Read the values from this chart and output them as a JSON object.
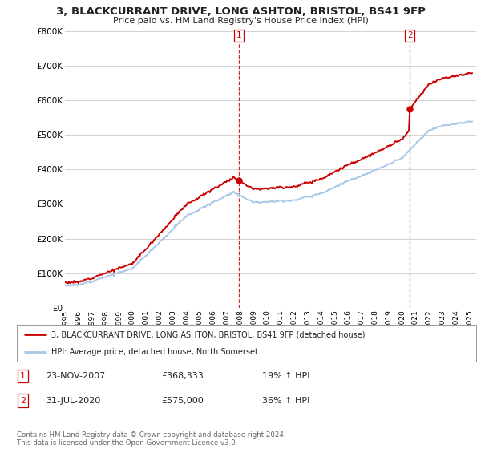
{
  "title": "3, BLACKCURRANT DRIVE, LONG ASHTON, BRISTOL, BS41 9FP",
  "subtitle": "Price paid vs. HM Land Registry's House Price Index (HPI)",
  "ylabel_ticks": [
    "£0",
    "£100K",
    "£200K",
    "£300K",
    "£400K",
    "£500K",
    "£600K",
    "£700K",
    "£800K"
  ],
  "ylim": [
    0,
    800000
  ],
  "xlim_start": 1995.0,
  "xlim_end": 2025.5,
  "hpi_color": "#a8c8e8",
  "price_color": "#cc0000",
  "marker1_date": 2007.9,
  "marker1_price": 368333,
  "marker2_date": 2020.58,
  "marker2_price": 575000,
  "vline_color": "#cc0000",
  "legend_label1": "3, BLACKCURRANT DRIVE, LONG ASHTON, BRISTOL, BS41 9FP (detached house)",
  "legend_label2": "HPI: Average price, detached house, North Somerset",
  "table_row1": [
    "1",
    "23-NOV-2007",
    "£368,333",
    "19% ↑ HPI"
  ],
  "table_row2": [
    "2",
    "31-JUL-2020",
    "£575,000",
    "36% ↑ HPI"
  ],
  "footer": "Contains HM Land Registry data © Crown copyright and database right 2024.\nThis data is licensed under the Open Government Licence v3.0.",
  "background_color": "#ffffff",
  "grid_color": "#cccccc"
}
